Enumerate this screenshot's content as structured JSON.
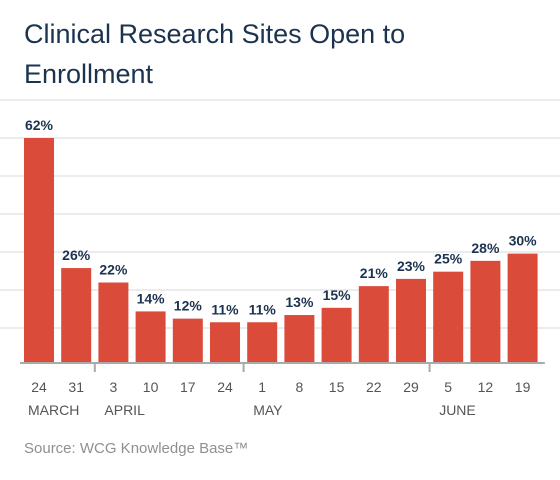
{
  "header": {
    "title": "Clinical Research Sites Open to Enrollment"
  },
  "footer": {
    "source": "Source: WCG Knowledge Base™"
  },
  "colors": {
    "bar": "#db4b3a",
    "title": "#1c3350",
    "gridline": "#d9d9d9",
    "axis": "#aaaaaa"
  },
  "chart_data": {
    "type": "bar",
    "title": "Clinical Research Sites Open to Enrollment",
    "categories": [
      "24",
      "31",
      "3",
      "10",
      "17",
      "24",
      "1",
      "8",
      "15",
      "22",
      "29",
      "5",
      "12",
      "19"
    ],
    "values": [
      62,
      26,
      22,
      14,
      12,
      11,
      11,
      13,
      15,
      21,
      23,
      25,
      28,
      30
    ],
    "value_labels": [
      "62%",
      "26%",
      "22%",
      "14%",
      "12%",
      "11%",
      "11%",
      "13%",
      "15%",
      "21%",
      "23%",
      "25%",
      "28%",
      "30%"
    ],
    "month_groups": [
      {
        "label": "MARCH",
        "start": 0,
        "end": 1
      },
      {
        "label": "APRIL",
        "start": 2,
        "end": 5
      },
      {
        "label": "MAY",
        "start": 6,
        "end": 10
      },
      {
        "label": "JUNE",
        "start": 11,
        "end": 13
      }
    ],
    "ylim": [
      0,
      62
    ],
    "unit": "%",
    "grid": true,
    "xlabel": "",
    "ylabel": ""
  }
}
